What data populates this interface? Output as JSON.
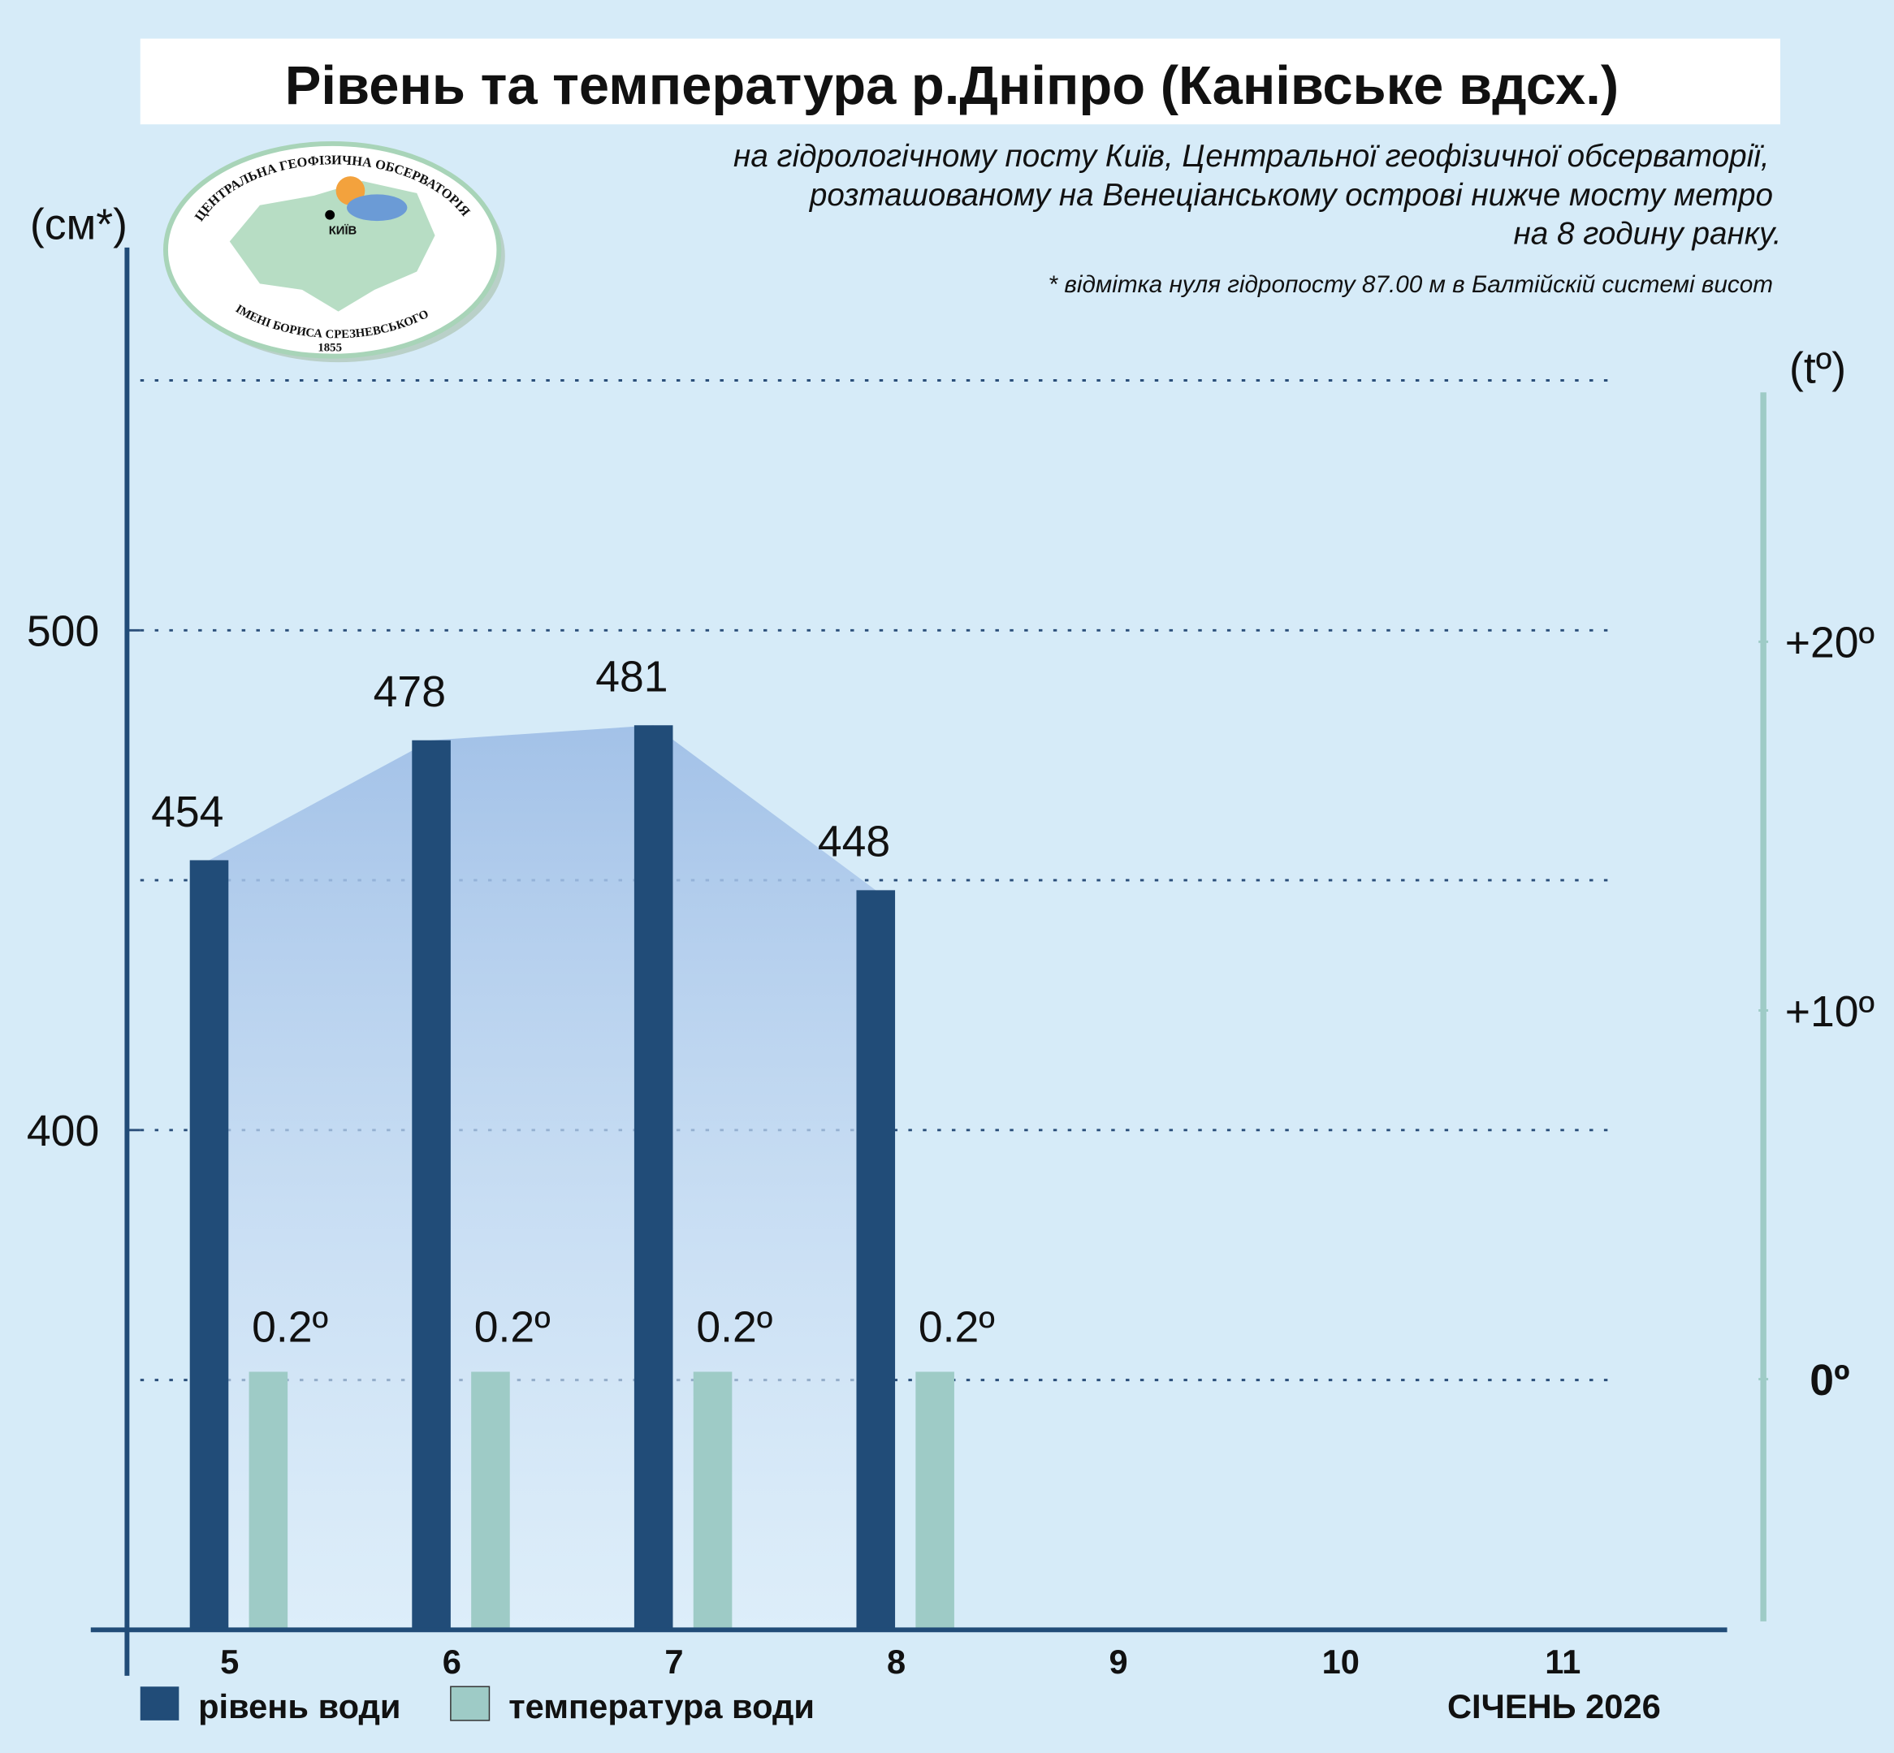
{
  "chart_data": {
    "type": "bar",
    "title": "Рівень та температура р.Дніпро (Канівське вдсх.)",
    "subtitle": [
      "на гідрологічному посту Київ, Центральної геофізичної обсерваторії,",
      "розташованому на Венеціанському острові нижче мосту метро",
      "на 8 годину ранку."
    ],
    "note": "* відмітка нуля гідропосту 87.00 м в Балтійскій системі висот",
    "logo": {
      "top": "ЦЕНТРАЛЬНА ГЕОФІЗИЧНА ОБСЕРВАТОРІЯ",
      "bottom": "ІМЕНІ БОРИСА СРЕЗНЕВСЬКОГО",
      "year": "1855",
      "city": "КИЇВ"
    },
    "y_label": "(см*)",
    "y2_label": "(tº)",
    "x_label": "СІЧЕНЬ 2026",
    "categories": [
      "5",
      "6",
      "7",
      "8",
      "9",
      "10",
      "11"
    ],
    "series": [
      {
        "name": "рівень води",
        "color": "#214c78",
        "values": [
          454,
          478,
          481,
          448,
          null,
          null,
          null
        ]
      },
      {
        "name": "температура води",
        "color": "#9ecbc6",
        "axis": "y2",
        "values": [
          0.2,
          0.2,
          0.2,
          0.2,
          null,
          null,
          null
        ],
        "value_labels": [
          "0.2º",
          "0.2º",
          "0.2º",
          "0.2º",
          null,
          null,
          null
        ]
      }
    ],
    "area_color": "#9dbde6",
    "ylim": [
      300,
      576.6
    ],
    "yticks": [
      400,
      500
    ],
    "ygrid": [
      350,
      400,
      450,
      500,
      550
    ],
    "y2lim": [
      -6.8,
      26.6
    ],
    "y2ticks": [
      {
        "value": 20,
        "label": "+20º"
      },
      {
        "value": 10,
        "label": "+10º"
      },
      {
        "value": 0,
        "label": "0º"
      }
    ]
  }
}
